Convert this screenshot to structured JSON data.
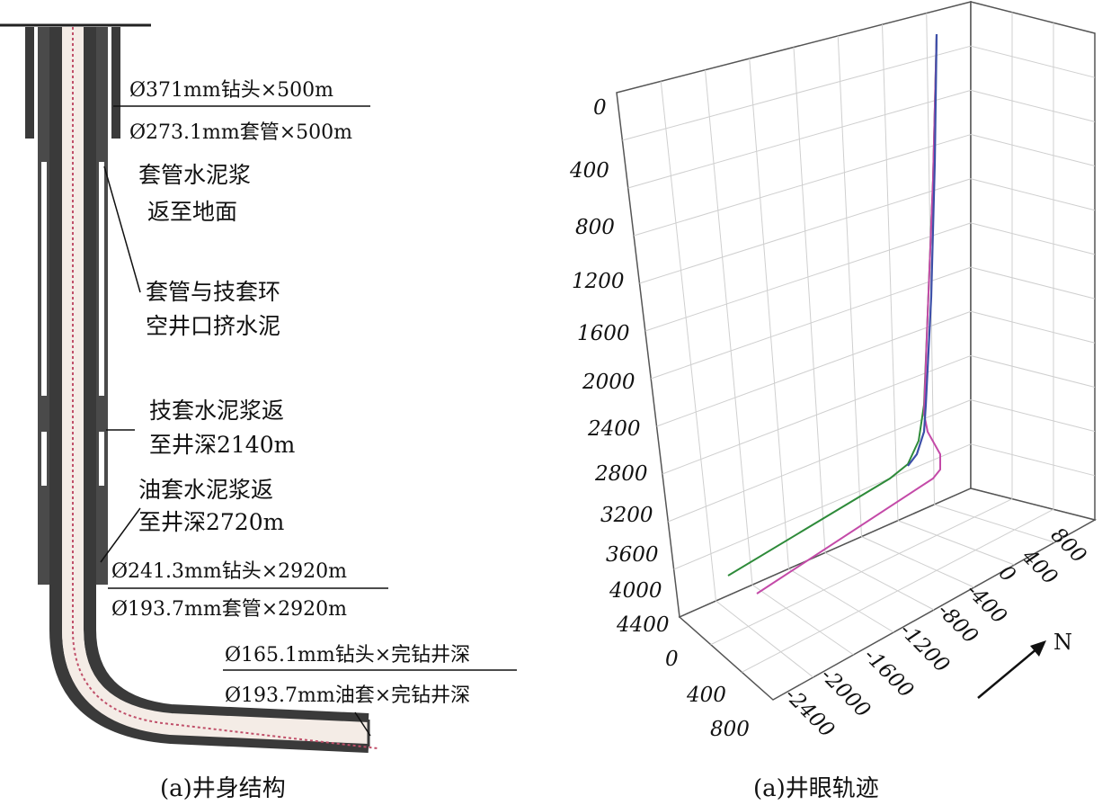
{
  "panel_a": {
    "caption": "(a)井身结构",
    "specs": {
      "surface_bit": "Ø371mm钻头×500m",
      "surface_casing": "Ø273.1mm套管×500m",
      "inter_bit": "Ø241.3mm钻头×2920m",
      "inter_casing": "Ø193.7mm套管×2920m",
      "prod_bit": "Ø165.1mm钻头×完钻井深",
      "prod_casing": "Ø193.7mm油套×完钻井深"
    },
    "notes": {
      "n1_line1": "套管水泥浆",
      "n1_line2": "返至地面",
      "n2_line1": "套管与技套环",
      "n2_line2": "空井口挤水泥",
      "n3_line1": "技套水泥浆返",
      "n3_line2": "至井深2140m",
      "n4_line1": "油套水泥浆返",
      "n4_line2": "至井深2720m"
    }
  },
  "panel_b": {
    "caption": "(a)井眼轨迹",
    "north_label": "N",
    "depth_ticks": [
      "0",
      "400",
      "800",
      "1200",
      "1600",
      "2000",
      "2400",
      "2800",
      "3200",
      "3600",
      "4000",
      "4400"
    ],
    "east_ticks": [
      "800",
      "400",
      "0",
      "-400",
      "-800",
      "-1200",
      "-1600",
      "-2000",
      "-2400"
    ],
    "north_ticks": [
      "0",
      "400",
      "800"
    ],
    "trajectory_colors": {
      "blue": "#3d4fa8",
      "green": "#2e8b3a",
      "magenta": "#c44aa8"
    }
  }
}
